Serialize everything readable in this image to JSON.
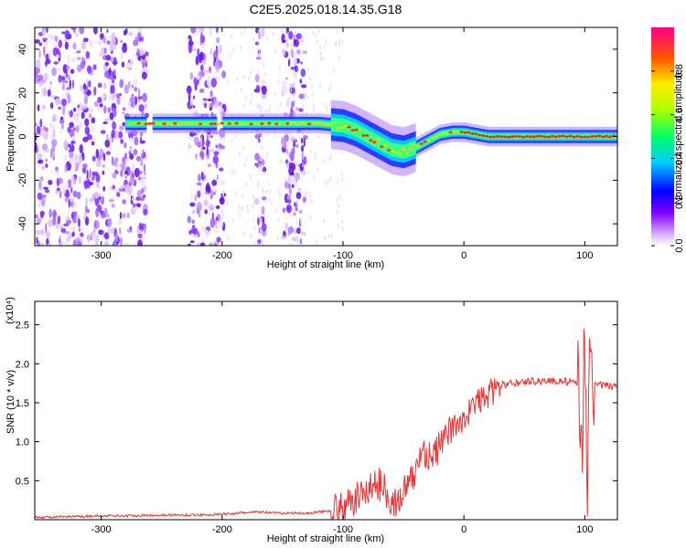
{
  "title": "C2E5.2025.018.14.35.G18",
  "chart_data": [
    {
      "type": "heatmap",
      "name": "spectrogram",
      "xlabel": "Height of straight line (km)",
      "ylabel": "Frequency (Hz)",
      "xlim": [
        -355,
        127
      ],
      "ylim": [
        -50,
        50
      ],
      "xticks": [
        -300,
        -200,
        -100,
        0,
        100
      ],
      "yticks": [
        -40,
        -20,
        0,
        20,
        40
      ],
      "xtick_labels": [
        "-300",
        "-200",
        "-100",
        "0",
        "100"
      ],
      "ytick_labels": [
        "-40",
        "-20",
        "0",
        "20",
        "40"
      ],
      "colorbar": {
        "label": "Normalized spectral amplitude",
        "range": [
          0,
          1
        ],
        "ticks": [
          0.0,
          0.2,
          0.4,
          0.6,
          0.8
        ],
        "tick_labels": [
          "0.0",
          "0.2",
          "0.4",
          "0.6",
          "0.8"
        ]
      },
      "ridge": {
        "x": [
          -280,
          -260,
          -240,
          -220,
          -200,
          -180,
          -160,
          -140,
          -120,
          -100,
          -90,
          -80,
          -70,
          -60,
          -50,
          -40,
          -30,
          -20,
          -10,
          0,
          20,
          40,
          60,
          80,
          100,
          127
        ],
        "y": [
          6,
          6,
          6,
          6,
          6,
          6,
          6,
          6,
          6,
          5,
          3,
          0,
          -3,
          -6,
          -7,
          -5,
          -2,
          1,
          2,
          2,
          0,
          0,
          0,
          0,
          0,
          0
        ]
      },
      "noise_bands": [
        [
          -355,
          -262
        ],
        [
          -228,
          -198
        ],
        [
          -172,
          -165
        ],
        [
          -150,
          -131
        ]
      ]
    },
    {
      "type": "line",
      "name": "snr",
      "xlabel": "Height of straight line (km)",
      "ylabel": "SNR (10 * v/v)",
      "y_multiplier": "(x10⁴)",
      "xlim": [
        -355,
        127
      ],
      "ylim": [
        0,
        2.8
      ],
      "xticks": [
        -300,
        -200,
        -100,
        0,
        100
      ],
      "yticks": [
        0.5,
        1.0,
        1.5,
        2.0,
        2.5
      ],
      "xtick_labels": [
        "-300",
        "-200",
        "-100",
        "0",
        "100"
      ],
      "ytick_labels": [
        "0.5",
        "1.0",
        "1.5",
        "2.0",
        "2.5"
      ],
      "series": [
        {
          "x": [
            -355,
            -320,
            -300,
            -280,
            -250,
            -220,
            -200,
            -180,
            -170,
            -160,
            -150,
            -140,
            -130,
            -120,
            -110,
            -100,
            -90,
            -80,
            -70,
            -65,
            -60,
            -55,
            -50,
            -45,
            -40,
            -35,
            -30,
            -25,
            -20,
            -15,
            -10,
            -5,
            0,
            5,
            10,
            20,
            30,
            40,
            50,
            60,
            70,
            80,
            90,
            95,
            98,
            100,
            102,
            104,
            106,
            110,
            120,
            127
          ],
          "y": [
            0.03,
            0.04,
            0.05,
            0.05,
            0.06,
            0.06,
            0.07,
            0.09,
            0.1,
            0.09,
            0.08,
            0.09,
            0.08,
            0.1,
            0.12,
            0.13,
            0.25,
            0.4,
            0.45,
            0.4,
            0.25,
            0.2,
            0.35,
            0.45,
            0.6,
            0.9,
            0.85,
            0.8,
            0.95,
            1.1,
            1.15,
            1.25,
            1.3,
            1.4,
            1.5,
            1.6,
            1.72,
            1.75,
            1.77,
            1.78,
            1.78,
            1.78,
            1.76,
            1.7,
            1.2,
            2.3,
            0.4,
            1.9,
            1.75,
            1.72,
            1.72,
            1.72
          ],
          "color": "#ee3333"
        }
      ]
    }
  ]
}
